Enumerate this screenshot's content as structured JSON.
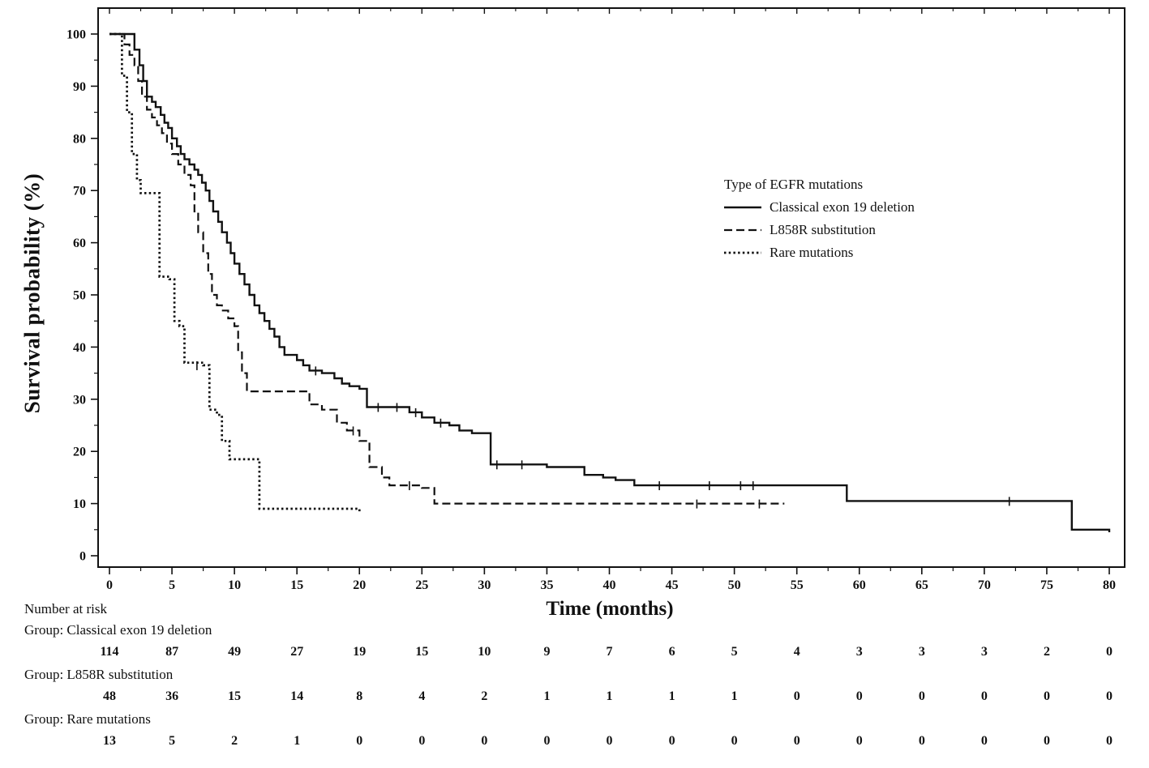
{
  "axes": {
    "x_label": "Time (months)",
    "y_label": "Survival probability (%)",
    "x_ticks": [
      0,
      5,
      10,
      15,
      20,
      25,
      30,
      35,
      40,
      45,
      50,
      55,
      60,
      65,
      70,
      75,
      80
    ],
    "y_ticks": [
      0,
      10,
      20,
      30,
      40,
      50,
      60,
      70,
      80,
      90,
      100
    ]
  },
  "legend": {
    "title": "Type of EGFR mutations",
    "entries": [
      {
        "label": "Classical exon 19 deletion",
        "style": "solid"
      },
      {
        "label": "L858R substitution",
        "style": "dashed"
      },
      {
        "label": "Rare mutations",
        "style": "dotted"
      }
    ]
  },
  "chart_data": {
    "type": "line",
    "subtype": "kaplan-meier-step",
    "title": "",
    "xlabel": "Time (months)",
    "ylabel": "Survival probability (%)",
    "xlim": [
      0,
      80
    ],
    "ylim": [
      0,
      100
    ],
    "grid": false,
    "legend_position": "upper-right-inside",
    "line_color": "#111111",
    "series": [
      {
        "name": "Classical exon 19 deletion",
        "style": "solid",
        "points": [
          [
            0,
            100
          ],
          [
            2,
            97
          ],
          [
            2.4,
            94
          ],
          [
            2.7,
            91
          ],
          [
            3,
            88
          ],
          [
            3.4,
            87
          ],
          [
            3.7,
            86
          ],
          [
            4.1,
            84.5
          ],
          [
            4.4,
            83
          ],
          [
            4.7,
            82
          ],
          [
            5,
            80
          ],
          [
            5.4,
            78.5
          ],
          [
            5.7,
            77
          ],
          [
            6,
            76
          ],
          [
            6.4,
            75
          ],
          [
            6.8,
            74
          ],
          [
            7.1,
            73
          ],
          [
            7.4,
            71.5
          ],
          [
            7.7,
            70
          ],
          [
            8,
            68
          ],
          [
            8.3,
            66
          ],
          [
            8.7,
            64
          ],
          [
            9,
            62
          ],
          [
            9.4,
            60
          ],
          [
            9.7,
            58
          ],
          [
            10,
            56
          ],
          [
            10.4,
            54
          ],
          [
            10.8,
            52
          ],
          [
            11.2,
            50
          ],
          [
            11.6,
            48
          ],
          [
            12,
            46.5
          ],
          [
            12.4,
            45
          ],
          [
            12.8,
            43.5
          ],
          [
            13.2,
            42
          ],
          [
            13.6,
            40
          ],
          [
            14,
            38.5
          ],
          [
            15,
            37.5
          ],
          [
            15.5,
            36.5
          ],
          [
            16,
            35.5
          ],
          [
            17,
            35
          ],
          [
            18,
            34
          ],
          [
            18.6,
            33
          ],
          [
            19.2,
            32.5
          ],
          [
            20,
            32
          ],
          [
            20.6,
            28.5
          ],
          [
            24,
            27.5
          ],
          [
            25,
            26.5
          ],
          [
            26,
            25.5
          ],
          [
            27.2,
            25
          ],
          [
            28,
            24
          ],
          [
            29,
            23.5
          ],
          [
            30.5,
            17.5
          ],
          [
            35,
            17
          ],
          [
            38,
            15.5
          ],
          [
            39.5,
            15
          ],
          [
            40.5,
            14.5
          ],
          [
            42,
            13.5
          ],
          [
            59,
            10.5
          ],
          [
            77,
            5
          ],
          [
            80,
            4.5
          ]
        ],
        "censors": [
          [
            16.5,
            35.5
          ],
          [
            21.5,
            28.5
          ],
          [
            23,
            28.5
          ],
          [
            24.5,
            27.5
          ],
          [
            26.5,
            25.5
          ],
          [
            31,
            17.5
          ],
          [
            33,
            17.5
          ],
          [
            44,
            13.5
          ],
          [
            48,
            13.5
          ],
          [
            50.5,
            13.5
          ],
          [
            51.5,
            13.5
          ],
          [
            72,
            10.5
          ]
        ]
      },
      {
        "name": "L858R substitution",
        "style": "dashed",
        "points": [
          [
            0,
            100
          ],
          [
            1.2,
            98
          ],
          [
            1.6,
            96
          ],
          [
            2,
            94
          ],
          [
            2.3,
            91
          ],
          [
            2.6,
            88
          ],
          [
            3,
            85.5
          ],
          [
            3.4,
            84
          ],
          [
            3.8,
            82.5
          ],
          [
            4.2,
            81
          ],
          [
            4.6,
            79
          ],
          [
            5,
            77
          ],
          [
            5.5,
            75
          ],
          [
            6,
            73
          ],
          [
            6.5,
            71
          ],
          [
            6.8,
            66
          ],
          [
            7.1,
            62
          ],
          [
            7.5,
            58
          ],
          [
            7.9,
            54
          ],
          [
            8.2,
            50
          ],
          [
            8.6,
            48
          ],
          [
            9,
            47
          ],
          [
            9.5,
            45.5
          ],
          [
            10,
            44
          ],
          [
            10.3,
            39
          ],
          [
            10.6,
            35
          ],
          [
            11,
            31.5
          ],
          [
            16,
            29
          ],
          [
            17,
            28
          ],
          [
            18.2,
            25.5
          ],
          [
            19,
            24
          ],
          [
            20,
            22
          ],
          [
            20.8,
            17
          ],
          [
            21.8,
            15
          ],
          [
            22.4,
            13.5
          ],
          [
            25,
            13
          ],
          [
            26,
            10
          ],
          [
            54,
            10
          ]
        ],
        "censors": [
          [
            19.5,
            24
          ],
          [
            24,
            13.5
          ],
          [
            47,
            10
          ],
          [
            52,
            10
          ]
        ]
      },
      {
        "name": "Rare mutations",
        "style": "dotted",
        "points": [
          [
            0,
            100
          ],
          [
            1,
            92
          ],
          [
            1.4,
            85
          ],
          [
            1.8,
            77
          ],
          [
            2.2,
            72
          ],
          [
            2.5,
            69.5
          ],
          [
            4,
            53.5
          ],
          [
            4.8,
            53
          ],
          [
            5.2,
            45
          ],
          [
            5.6,
            44
          ],
          [
            6,
            37
          ],
          [
            7.5,
            36.5
          ],
          [
            8,
            28
          ],
          [
            8.6,
            27
          ],
          [
            9,
            22
          ],
          [
            9.6,
            18.5
          ],
          [
            12,
            9
          ],
          [
            20,
            8.5
          ]
        ],
        "censors": [
          [
            7,
            36.5
          ]
        ]
      }
    ]
  },
  "risk_table": {
    "heading": "Number at risk",
    "time_points": [
      0,
      5,
      10,
      15,
      20,
      25,
      30,
      35,
      40,
      45,
      50,
      55,
      60,
      65,
      70,
      75,
      80
    ],
    "groups": [
      {
        "label": "Group: Classical exon 19 deletion",
        "counts": [
          114,
          87,
          49,
          27,
          19,
          15,
          10,
          9,
          7,
          6,
          5,
          4,
          3,
          3,
          3,
          2,
          0
        ]
      },
      {
        "label": "Group: L858R substitution",
        "counts": [
          48,
          36,
          15,
          14,
          8,
          4,
          2,
          1,
          1,
          1,
          1,
          0,
          0,
          0,
          0,
          0,
          0
        ]
      },
      {
        "label": "Group: Rare mutations",
        "counts": [
          13,
          5,
          2,
          1,
          0,
          0,
          0,
          0,
          0,
          0,
          0,
          0,
          0,
          0,
          0,
          0,
          0
        ]
      }
    ]
  }
}
